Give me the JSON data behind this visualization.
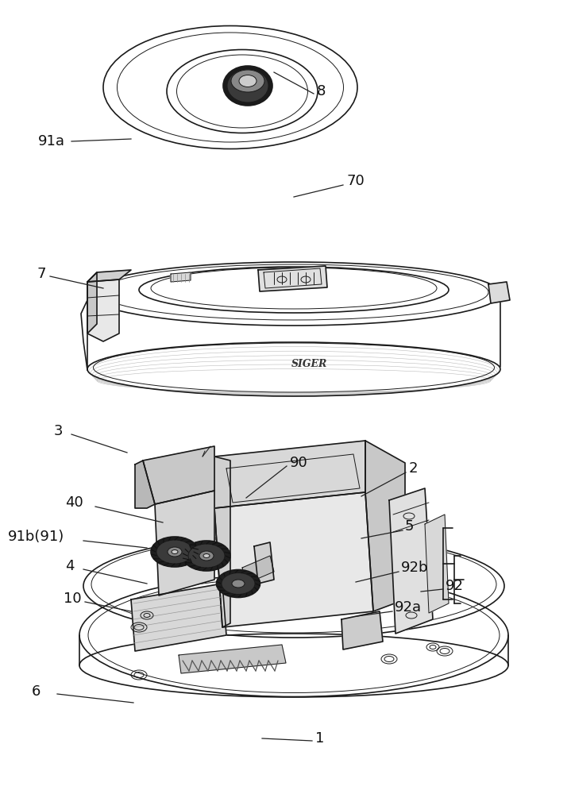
{
  "bg": "#ffffff",
  "lc": "#1a1a1a",
  "lw": 1.2,
  "fontsize": 13,
  "labels": [
    [
      "8",
      399,
      115
    ],
    [
      "91a",
      48,
      178
    ],
    [
      "70",
      436,
      228
    ],
    [
      "7",
      47,
      345
    ],
    [
      "3",
      68,
      543
    ],
    [
      "90",
      365,
      583
    ],
    [
      "2",
      515,
      590
    ],
    [
      "40",
      82,
      633
    ],
    [
      "91b(91)",
      10,
      676
    ],
    [
      "5",
      510,
      663
    ],
    [
      "4",
      82,
      713
    ],
    [
      "92b",
      505,
      715
    ],
    [
      "10",
      80,
      754
    ],
    [
      "92",
      561,
      738
    ],
    [
      "92a",
      497,
      765
    ],
    [
      "6",
      40,
      871
    ],
    [
      "1",
      397,
      930
    ]
  ],
  "leader_lines": [
    [
      395,
      118,
      345,
      91
    ],
    [
      90,
      178,
      165,
      175
    ],
    [
      432,
      233,
      370,
      248
    ],
    [
      63,
      348,
      130,
      363
    ],
    [
      90,
      547,
      160,
      570
    ],
    [
      361,
      587,
      310,
      627
    ],
    [
      511,
      595,
      455,
      625
    ],
    [
      120,
      638,
      205,
      658
    ],
    [
      105,
      681,
      185,
      690
    ],
    [
      507,
      668,
      455,
      678
    ],
    [
      105,
      717,
      185,
      735
    ],
    [
      502,
      720,
      448,
      733
    ],
    [
      107,
      758,
      165,
      770
    ],
    [
      558,
      742,
      530,
      745
    ],
    [
      494,
      770,
      450,
      776
    ],
    [
      72,
      874,
      168,
      885
    ],
    [
      393,
      933,
      330,
      930
    ]
  ]
}
